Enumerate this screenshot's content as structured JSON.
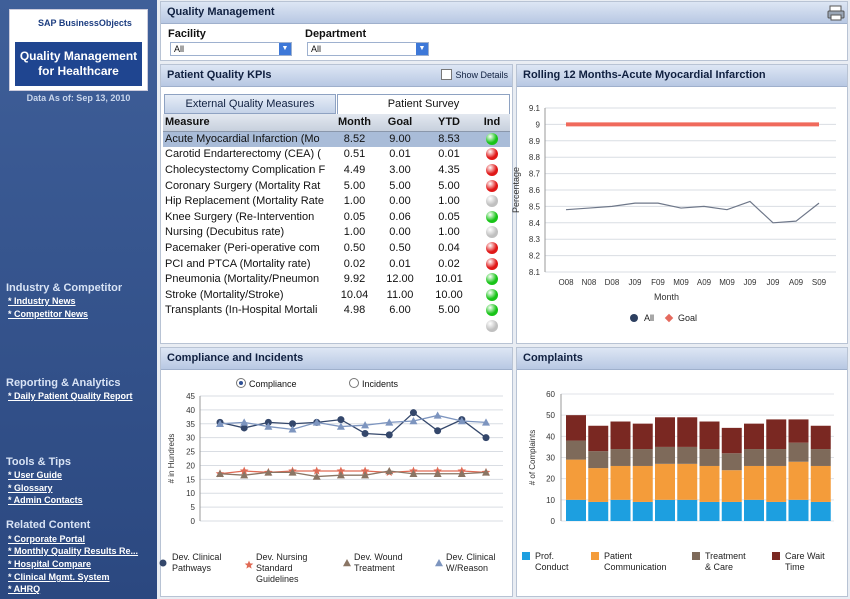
{
  "sidebar": {
    "brand": "SAP BusinessObjects",
    "app_title": "Quality Management for Healthcare",
    "data_as_of": "Data As of: Sep 13, 2010",
    "sections": [
      {
        "title": "Industry & Competitor",
        "links": [
          "* Industry News",
          "* Competitor News"
        ]
      },
      {
        "title": "Reporting & Analytics",
        "links": [
          "* Daily Patient Quality Report"
        ]
      },
      {
        "title": "Tools & Tips",
        "links": [
          "* User Guide",
          "* Glossary",
          "* Admin Contacts"
        ]
      },
      {
        "title": "Related Content",
        "links": [
          "* Corporate Portal",
          "* Monthly Quality Results Re...",
          "* Hospital Compare",
          "* Clinical Mgmt. System",
          "* AHRQ"
        ]
      }
    ]
  },
  "header": {
    "title": "Quality Management",
    "facility_label": "Facility",
    "facility_value": "All",
    "department_label": "Department",
    "department_value": "All",
    "print_icon": "printer-icon"
  },
  "kpi": {
    "title": "Patient Quality KPIs",
    "show_details": "Show Details",
    "tabs": [
      "External Quality Measures",
      "Patient Survey"
    ],
    "columns": [
      "Measure",
      "Month",
      "Goal",
      "YTD",
      "Ind"
    ],
    "rows": [
      {
        "measure": "Acute Myocardial Infarction (Mo",
        "month": "8.52",
        "goal": "9.00",
        "ytd": "8.53",
        "ind": "#18c418"
      },
      {
        "measure": "Carotid Endarterectomy (CEA) (",
        "month": "0.51",
        "goal": "0.01",
        "ytd": "0.01",
        "ind": "#e01818"
      },
      {
        "measure": "Cholecystectomy Complication F",
        "month": "4.49",
        "goal": "3.00",
        "ytd": "4.35",
        "ind": "#e01818"
      },
      {
        "measure": "Coronary Surgery (Mortality Rat",
        "month": "5.00",
        "goal": "5.00",
        "ytd": "5.00",
        "ind": "#e01818"
      },
      {
        "measure": "Hip Replacement (Mortality Rate",
        "month": "1.00",
        "goal": "0.00",
        "ytd": "1.00",
        "ind": "#c0c0c0"
      },
      {
        "measure": "Knee Surgery (Re-Intervention",
        "month": "0.05",
        "goal": "0.06",
        "ytd": "0.05",
        "ind": "#18c418"
      },
      {
        "measure": "Nursing (Decubitus rate)",
        "month": "1.00",
        "goal": "0.00",
        "ytd": "1.00",
        "ind": "#c0c0c0"
      },
      {
        "measure": "Pacemaker (Peri-operative com",
        "month": "0.50",
        "goal": "0.50",
        "ytd": "0.04",
        "ind": "#e01818"
      },
      {
        "measure": "PCI and PTCA (Mortality rate)",
        "month": "0.02",
        "goal": "0.01",
        "ytd": "0.02",
        "ind": "#e01818"
      },
      {
        "measure": "Pneumonia (Mortality/Pneumon",
        "month": "9.92",
        "goal": "12.00",
        "ytd": "10.01",
        "ind": "#18c418"
      },
      {
        "measure": "Stroke (Mortality/Stroke)",
        "month": "10.04",
        "goal": "11.00",
        "ytd": "10.00",
        "ind": "#18c418"
      },
      {
        "measure": "Transplants (In-Hospital Mortali",
        "month": "4.98",
        "goal": "6.00",
        "ytd": "5.00",
        "ind": "#18c418"
      },
      {
        "measure": "",
        "month": "",
        "goal": "",
        "ytd": "",
        "ind": "#c0c0c0"
      }
    ]
  },
  "rolling": {
    "title": "Rolling 12 Months-Acute Myocardial Infarction"
  },
  "compliance": {
    "title": "Compliance and Incidents",
    "radio_options": [
      "Compliance",
      "Incidents"
    ],
    "selected": "Compliance"
  },
  "complaints": {
    "title": "Complaints"
  },
  "chart_data": [
    {
      "type": "line",
      "title": "",
      "xlabel": "Month",
      "ylabel": "Percentage",
      "categories": [
        "O08",
        "N08",
        "D08",
        "J09",
        "F09",
        "M09",
        "A09",
        "M09",
        "J09",
        "J09",
        "A09",
        "S09"
      ],
      "ylim": [
        8.1,
        9.1
      ],
      "yticks": [
        "8.1",
        "8.2",
        "8.3",
        "8.4",
        "8.5",
        "8.6",
        "8.7",
        "8.8",
        "8.9",
        "9",
        "9.1"
      ],
      "legend_position": "bottom",
      "series": [
        {
          "name": "All",
          "color": "#6e7789",
          "values": [
            8.48,
            8.49,
            8.5,
            8.52,
            8.52,
            8.49,
            8.5,
            8.48,
            8.53,
            8.4,
            8.41,
            8.52
          ]
        },
        {
          "name": "Goal",
          "color": "#f06a5c",
          "values": [
            9.0,
            9.0,
            9.0,
            9.0,
            9.0,
            9.0,
            9.0,
            9.0,
            9.0,
            9.0,
            9.0,
            9.0
          ]
        }
      ]
    },
    {
      "type": "line",
      "title": "",
      "xlabel": "",
      "ylabel": "# in Hundreds",
      "ylim": [
        0,
        45
      ],
      "yticks": [
        "0",
        "5",
        "10",
        "15",
        "20",
        "25",
        "30",
        "35",
        "40",
        "45"
      ],
      "legend_position": "bottom",
      "series": [
        {
          "name": "Dev. Clinical Pathways",
          "color": "#34476b",
          "marker": "circle",
          "values": [
            35.5,
            33.5,
            35.5,
            35,
            35.5,
            36.5,
            31.5,
            31,
            39,
            32.5,
            36.5,
            30
          ]
        },
        {
          "name": "Dev. Nursing Standard Guidelines",
          "color": "#e06a55",
          "marker": "star",
          "values": [
            17,
            18,
            17.5,
            18,
            18,
            18,
            18,
            17.5,
            18,
            18,
            18,
            17.5
          ]
        },
        {
          "name": "Dev. Wound Treatment",
          "color": "#8a7564",
          "marker": "triangle",
          "values": [
            17,
            16.5,
            17.5,
            17.5,
            16,
            16.5,
            16.5,
            18,
            17,
            17,
            17,
            17.5
          ]
        },
        {
          "name": "Dev. Clinical W/Reason",
          "color": "#7d95bf",
          "marker": "triangle",
          "values": [
            35,
            35.5,
            34,
            33,
            35.5,
            34,
            34.5,
            35.5,
            36,
            38,
            36,
            35.5
          ]
        }
      ]
    },
    {
      "type": "bar",
      "stacked": true,
      "title": "",
      "ylabel": "# of Complaints",
      "ylim": [
        0,
        60
      ],
      "yticks": [
        "0",
        "10",
        "20",
        "30",
        "40",
        "50",
        "60"
      ],
      "legend_position": "bottom",
      "series": [
        {
          "name": "Prof. Conduct",
          "color": "#1d9fe0",
          "values": [
            10,
            9,
            10,
            9,
            10,
            10,
            9,
            9,
            10,
            9,
            10,
            9
          ]
        },
        {
          "name": "Patient Communication",
          "color": "#f49c3a",
          "values": [
            19,
            16,
            16,
            17,
            17,
            17,
            17,
            15,
            16,
            17,
            18,
            17
          ]
        },
        {
          "name": "Treatment & Care",
          "color": "#7e6a5a",
          "values": [
            9,
            8,
            8,
            8,
            8,
            8,
            8,
            8,
            8,
            8,
            9,
            8
          ]
        },
        {
          "name": "Care Wait Time",
          "color": "#7a2822",
          "values": [
            12,
            12,
            13,
            12,
            14,
            14,
            13,
            12,
            12,
            14,
            11,
            11
          ]
        }
      ]
    }
  ]
}
